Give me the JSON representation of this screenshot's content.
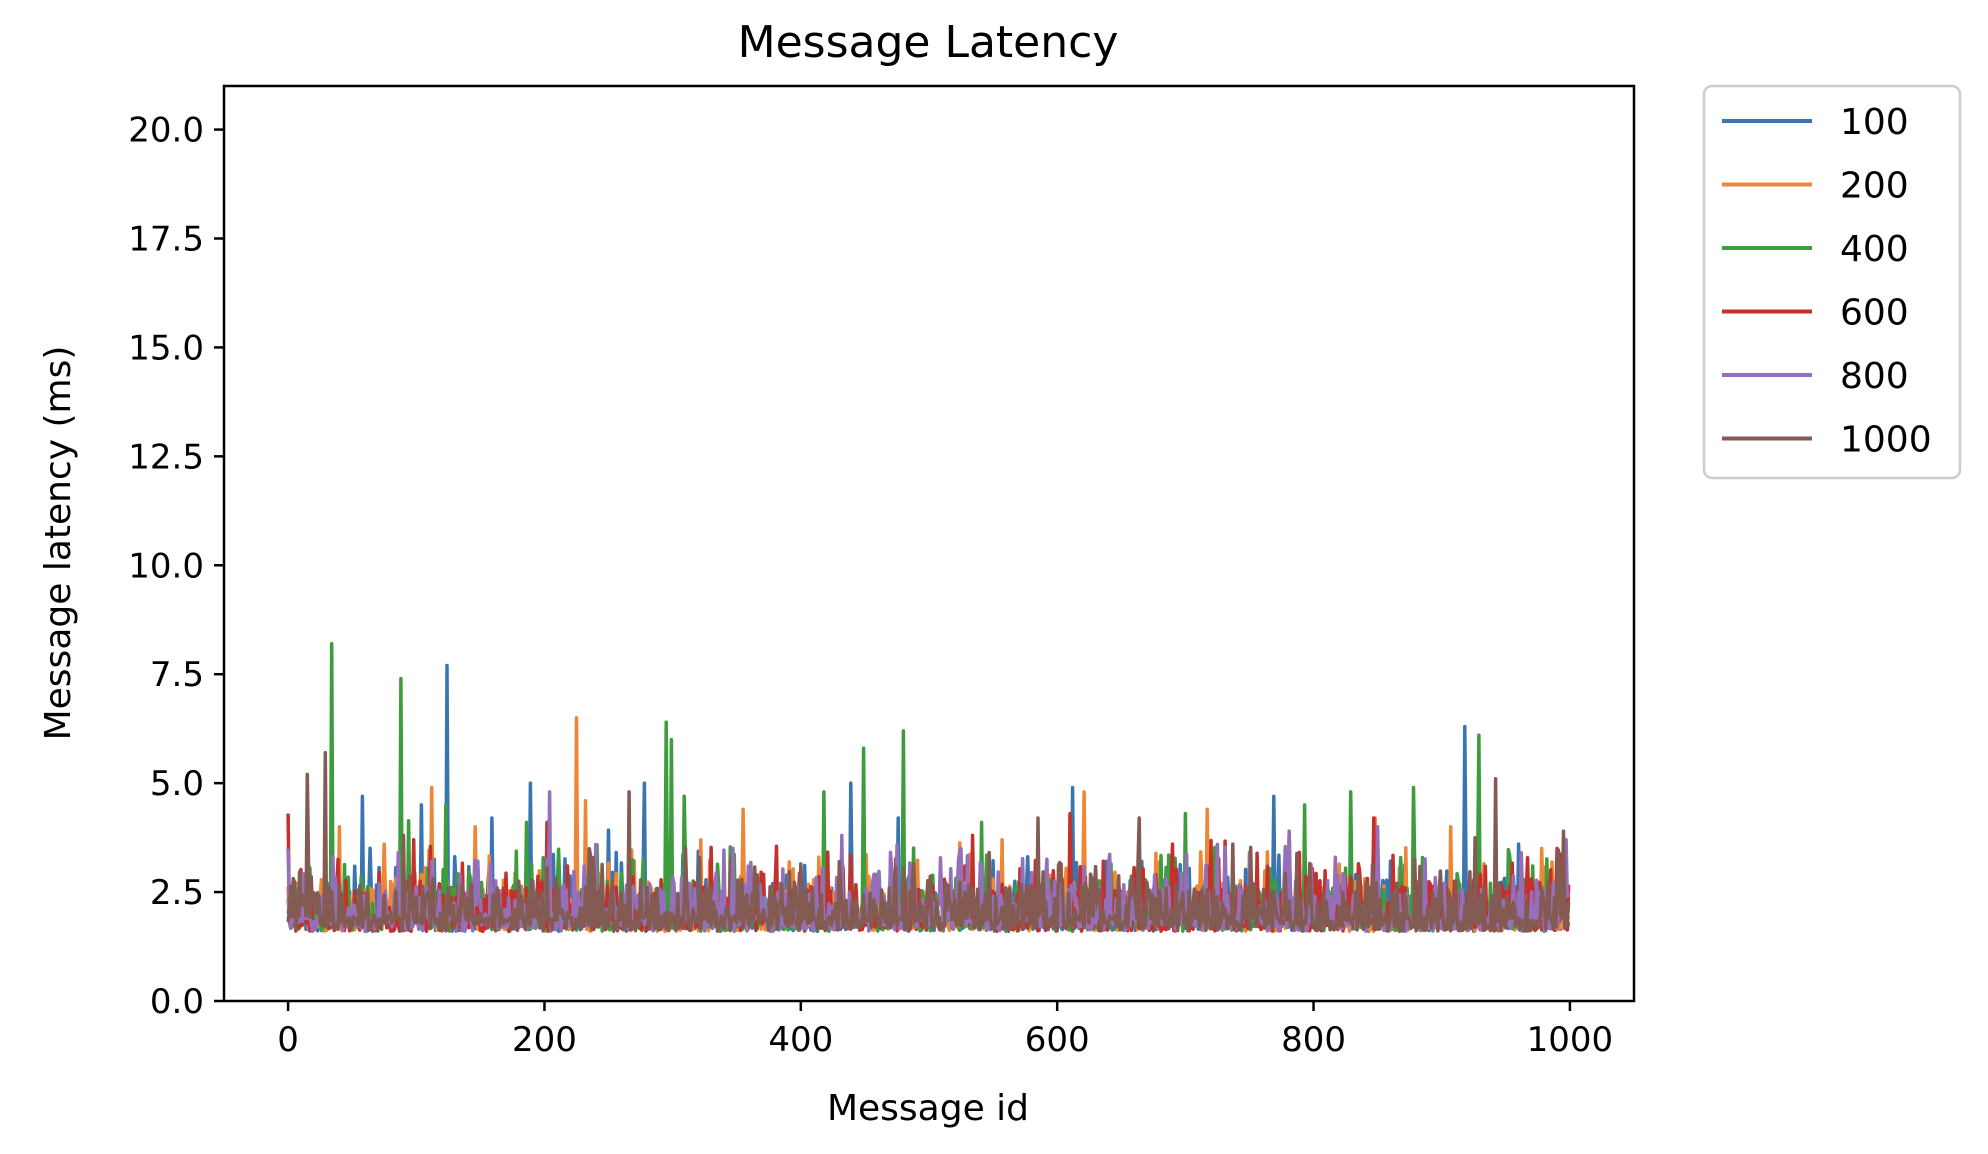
{
  "chart_data": {
    "type": "line",
    "title": "Message Latency",
    "xlabel": "Message id",
    "ylabel": "Message latency (ms)",
    "xlim": [
      -50,
      1050
    ],
    "ylim": [
      0,
      21
    ],
    "xticks": [
      0,
      200,
      400,
      600,
      800,
      1000
    ],
    "xtick_labels": [
      "0",
      "200",
      "400",
      "600",
      "800",
      "1000"
    ],
    "yticks": [
      0,
      2.5,
      5,
      7.5,
      10,
      12.5,
      15,
      17.5,
      20
    ],
    "ytick_labels": [
      "0.0",
      "2.5",
      "5.0",
      "7.5",
      "10.0",
      "12.5",
      "15.0",
      "17.5",
      "20.0"
    ],
    "grid": false,
    "legend_position": "outside-top-right",
    "message_count": 1000,
    "series": [
      {
        "name": "100",
        "color": "#3a75b0",
        "peaks": [
          [
            58,
            4.7
          ],
          [
            104,
            4.5
          ],
          [
            124,
            7.7
          ],
          [
            159,
            4.2
          ],
          [
            189,
            5.0
          ],
          [
            278,
            5.0
          ],
          [
            439,
            5.0
          ],
          [
            476,
            4.2
          ],
          [
            612,
            4.9
          ],
          [
            769,
            4.7
          ],
          [
            918,
            6.3
          ],
          [
            960,
            3.6
          ]
        ]
      },
      {
        "name": "200",
        "color": "#ef8636",
        "peaks": [
          [
            40,
            4.0
          ],
          [
            112,
            4.9
          ],
          [
            146,
            4.0
          ],
          [
            225,
            6.5
          ],
          [
            232,
            4.6
          ],
          [
            355,
            4.4
          ],
          [
            557,
            3.7
          ],
          [
            621,
            4.8
          ],
          [
            717,
            4.4
          ],
          [
            848,
            4.2
          ],
          [
            907,
            4.0
          ],
          [
            978,
            3.5
          ]
        ]
      },
      {
        "name": "400",
        "color": "#3d9c3d",
        "peaks": [
          [
            34,
            8.2
          ],
          [
            88,
            7.4
          ],
          [
            123,
            4.5
          ],
          [
            186,
            4.1
          ],
          [
            295,
            6.4
          ],
          [
            299,
            6.0
          ],
          [
            309,
            4.7
          ],
          [
            418,
            4.8
          ],
          [
            449,
            5.8
          ],
          [
            480,
            6.2
          ],
          [
            541,
            4.1
          ],
          [
            700,
            4.3
          ],
          [
            793,
            4.5
          ],
          [
            829,
            4.8
          ],
          [
            878,
            4.9
          ],
          [
            929,
            6.1
          ]
        ]
      },
      {
        "name": "600",
        "color": "#c4302c",
        "peaks": [
          [
            0,
            4.3
          ],
          [
            98,
            3.7
          ],
          [
            202,
            4.1
          ],
          [
            346,
            3.3
          ],
          [
            534,
            3.8
          ],
          [
            610,
            4.3
          ],
          [
            690,
            3.6
          ],
          [
            781,
            3.8
          ],
          [
            847,
            4.2
          ],
          [
            990,
            3.5
          ]
        ]
      },
      {
        "name": "800",
        "color": "#9370b9",
        "peaks": [
          [
            204,
            4.8
          ],
          [
            432,
            3.8
          ],
          [
            525,
            3.5
          ],
          [
            781,
            3.9
          ],
          [
            850,
            4.0
          ],
          [
            997,
            3.7
          ]
        ]
      },
      {
        "name": "1000",
        "color": "#845b53",
        "peaks": [
          [
            15,
            5.2
          ],
          [
            29,
            5.7
          ],
          [
            90,
            3.8
          ],
          [
            266,
            4.8
          ],
          [
            585,
            4.2
          ],
          [
            664,
            4.2
          ],
          [
            737,
            3.6
          ],
          [
            942,
            5.1
          ],
          [
            995,
            3.9
          ]
        ]
      }
    ]
  }
}
